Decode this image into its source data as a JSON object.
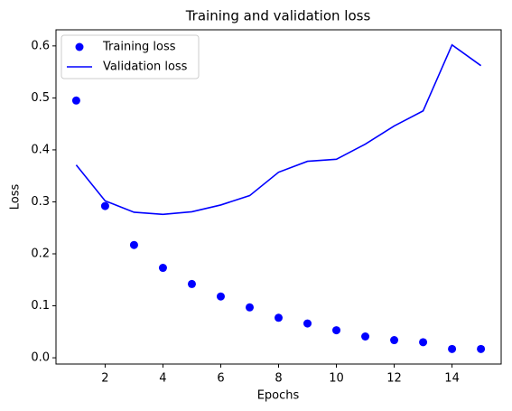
{
  "chart_data": {
    "type": "line",
    "title": "Training and validation loss",
    "x_label": "Epochs",
    "y_label": "Loss",
    "x": [
      1,
      2,
      3,
      4,
      5,
      6,
      7,
      8,
      9,
      10,
      11,
      12,
      13,
      14,
      15
    ],
    "series": [
      {
        "name": "Training loss",
        "color": "#0000ff",
        "mode": "markers",
        "values": [
          0.495,
          0.292,
          0.217,
          0.173,
          0.142,
          0.118,
          0.097,
          0.077,
          0.066,
          0.053,
          0.041,
          0.034,
          0.03,
          0.017,
          0.017
        ]
      },
      {
        "name": "Validation loss",
        "color": "#0000ff",
        "mode": "line",
        "values": [
          0.371,
          0.302,
          0.28,
          0.276,
          0.281,
          0.294,
          0.312,
          0.357,
          0.378,
          0.382,
          0.411,
          0.446,
          0.475,
          0.602,
          0.562
        ]
      }
    ],
    "xlim": [
      0.3,
      15.7
    ],
    "ylim": [
      -0.012,
      0.631
    ],
    "xticks": [
      2,
      4,
      6,
      8,
      10,
      12,
      14
    ],
    "yticks": [
      {
        "value": 0,
        "label": "0.0"
      },
      0.1,
      0.2,
      0.3,
      0.4,
      0.5,
      0.6
    ],
    "grid": false,
    "legend": "upper left"
  }
}
